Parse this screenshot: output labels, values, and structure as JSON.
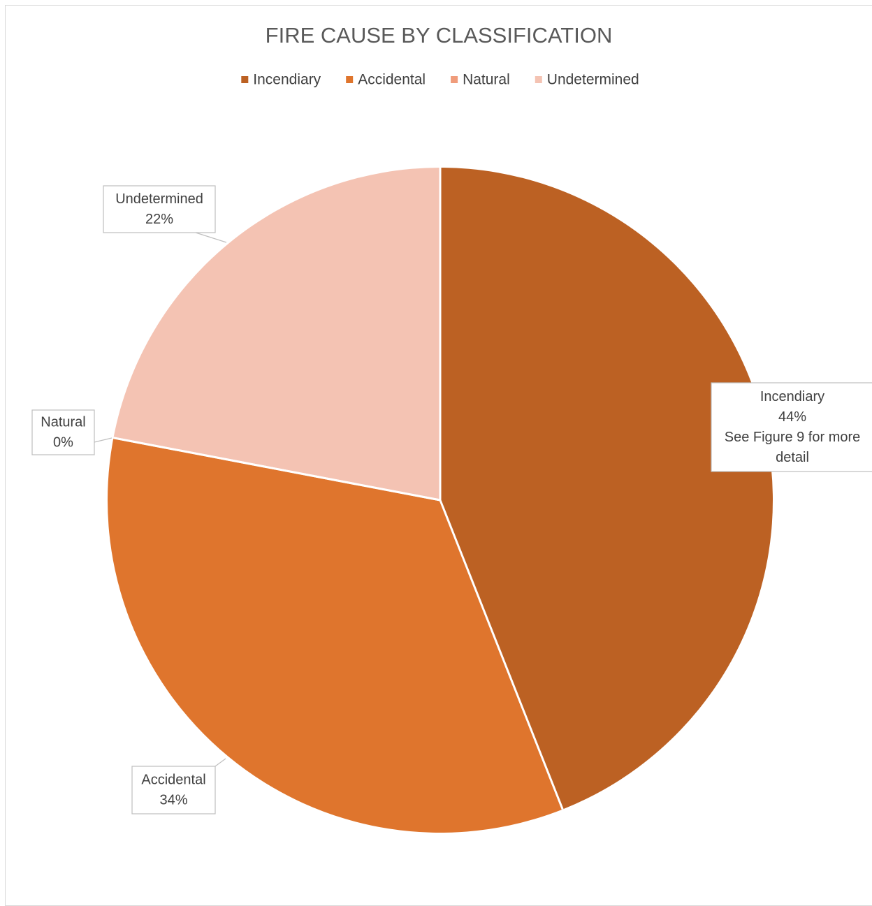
{
  "chart_data": {
    "type": "pie",
    "title": "FIRE CAUSE BY CLASSIFICATION",
    "legend_position": "top",
    "start_angle_deg": 0,
    "direction": "clockwise",
    "slices": [
      {
        "label": "Incendiary",
        "value": 44,
        "value_label": "44%",
        "note": "See Figure 9  for more detail",
        "color": "#bc6123"
      },
      {
        "label": "Accidental",
        "value": 34,
        "value_label": "34%",
        "note": "",
        "color": "#df752d"
      },
      {
        "label": "Natural",
        "value": 0,
        "value_label": "0%",
        "note": "",
        "color": "#f09c7b"
      },
      {
        "label": "Undetermined",
        "value": 22,
        "value_label": "22%",
        "note": "",
        "color": "#f4c3b3"
      }
    ]
  }
}
